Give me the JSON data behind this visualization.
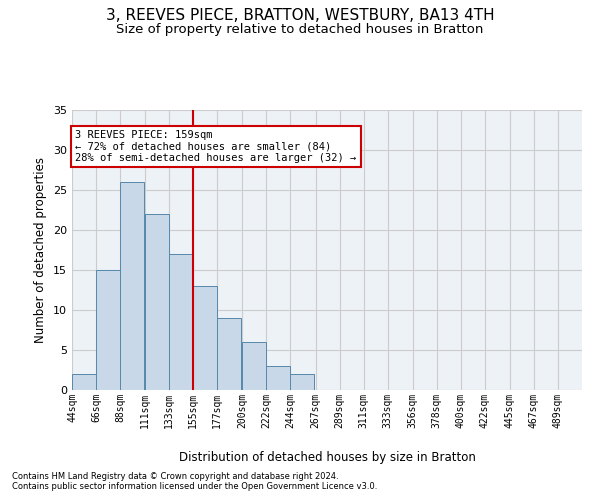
{
  "title": "3, REEVES PIECE, BRATTON, WESTBURY, BA13 4TH",
  "subtitle": "Size of property relative to detached houses in Bratton",
  "xlabel": "Distribution of detached houses by size in Bratton",
  "ylabel": "Number of detached properties",
  "bin_labels": [
    "44sqm",
    "66sqm",
    "88sqm",
    "111sqm",
    "133sqm",
    "155sqm",
    "177sqm",
    "200sqm",
    "222sqm",
    "244sqm",
    "267sqm",
    "289sqm",
    "311sqm",
    "333sqm",
    "356sqm",
    "378sqm",
    "400sqm",
    "422sqm",
    "445sqm",
    "467sqm",
    "489sqm"
  ],
  "bin_edges": [
    44,
    66,
    88,
    111,
    133,
    155,
    177,
    200,
    222,
    244,
    267,
    289,
    311,
    333,
    356,
    378,
    400,
    422,
    445,
    467,
    489
  ],
  "bar_heights": [
    2,
    15,
    26,
    22,
    17,
    13,
    9,
    6,
    3,
    2,
    0,
    0,
    0,
    0,
    0,
    0,
    0,
    0,
    0,
    0,
    0
  ],
  "bar_color": "#c8d8e8",
  "bar_edge_color": "#5588aa",
  "property_line_x": 155,
  "property_line_color": "#cc0000",
  "ylim": [
    0,
    35
  ],
  "yticks": [
    0,
    5,
    10,
    15,
    20,
    25,
    30,
    35
  ],
  "annotation_line1": "3 REEVES PIECE: 159sqm",
  "annotation_line2": "← 72% of detached houses are smaller (84)",
  "annotation_line3": "28% of semi-detached houses are larger (32) →",
  "annotation_box_color": "#cc0000",
  "footnote1": "Contains HM Land Registry data © Crown copyright and database right 2024.",
  "footnote2": "Contains public sector information licensed under the Open Government Licence v3.0.",
  "grid_color": "#cccccc",
  "background_color": "#edf2f7",
  "title_fontsize": 11,
  "subtitle_fontsize": 9.5
}
